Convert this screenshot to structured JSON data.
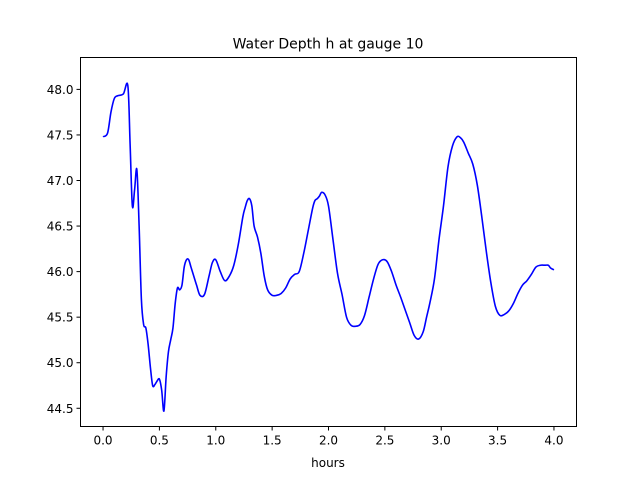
{
  "chart_data": {
    "type": "line",
    "title": "Water Depth h at gauge 10",
    "xlabel": "hours",
    "ylabel": "",
    "xlim": [
      -0.2,
      4.2
    ],
    "ylim": [
      44.3,
      48.35
    ],
    "xticks": [
      0.0,
      0.5,
      1.0,
      1.5,
      2.0,
      2.5,
      3.0,
      3.5,
      4.0
    ],
    "xtick_labels": [
      "0.0",
      "0.5",
      "1.0",
      "1.5",
      "2.0",
      "2.5",
      "3.0",
      "3.5",
      "4.0"
    ],
    "yticks": [
      44.5,
      45.0,
      45.5,
      46.0,
      46.5,
      47.0,
      47.5,
      48.0
    ],
    "ytick_labels": [
      "44.5",
      "45.0",
      "45.5",
      "46.0",
      "46.5",
      "47.0",
      "47.5",
      "48.0"
    ],
    "grid": false,
    "series": [
      {
        "color": "#0000ff",
        "x": [
          0.0,
          0.04,
          0.07,
          0.1,
          0.13,
          0.18,
          0.22,
          0.24,
          0.26,
          0.28,
          0.3,
          0.32,
          0.34,
          0.36,
          0.38,
          0.4,
          0.42,
          0.44,
          0.46,
          0.48,
          0.5,
          0.52,
          0.54,
          0.56,
          0.58,
          0.6,
          0.62,
          0.64,
          0.66,
          0.68,
          0.7,
          0.72,
          0.74,
          0.76,
          0.78,
          0.8,
          0.83,
          0.86,
          0.9,
          0.94,
          0.97,
          1.0,
          1.04,
          1.08,
          1.12,
          1.16,
          1.2,
          1.24,
          1.26,
          1.28,
          1.3,
          1.32,
          1.34,
          1.37,
          1.4,
          1.43,
          1.46,
          1.5,
          1.54,
          1.58,
          1.62,
          1.66,
          1.7,
          1.74,
          1.78,
          1.82,
          1.86,
          1.88,
          1.9,
          1.92,
          1.94,
          1.97,
          2.0,
          2.04,
          2.08,
          2.12,
          2.16,
          2.2,
          2.24,
          2.28,
          2.32,
          2.36,
          2.4,
          2.44,
          2.48,
          2.52,
          2.56,
          2.6,
          2.64,
          2.68,
          2.72,
          2.76,
          2.8,
          2.84,
          2.87,
          2.9,
          2.94,
          2.98,
          3.02,
          3.06,
          3.1,
          3.14,
          3.17,
          3.2,
          3.24,
          3.28,
          3.32,
          3.36,
          3.4,
          3.44,
          3.48,
          3.52,
          3.56,
          3.6,
          3.64,
          3.68,
          3.72,
          3.76,
          3.8,
          3.84,
          3.88,
          3.92,
          3.95,
          3.97,
          4.0
        ],
        "y": [
          47.48,
          47.52,
          47.75,
          47.9,
          47.93,
          47.95,
          48.04,
          47.4,
          46.72,
          46.9,
          47.12,
          46.5,
          45.7,
          45.42,
          45.38,
          45.2,
          44.95,
          44.75,
          44.76,
          44.8,
          44.82,
          44.7,
          44.47,
          44.85,
          45.12,
          45.25,
          45.38,
          45.65,
          45.82,
          45.8,
          45.85,
          46.05,
          46.13,
          46.13,
          46.05,
          45.97,
          45.85,
          45.74,
          45.75,
          45.95,
          46.1,
          46.13,
          46.0,
          45.9,
          45.95,
          46.07,
          46.3,
          46.6,
          46.7,
          46.78,
          46.8,
          46.72,
          46.5,
          46.38,
          46.2,
          45.95,
          45.8,
          45.74,
          45.74,
          45.76,
          45.82,
          45.92,
          45.97,
          46.0,
          46.2,
          46.45,
          46.7,
          46.78,
          46.8,
          46.83,
          46.87,
          46.84,
          46.72,
          46.35,
          45.98,
          45.75,
          45.5,
          45.41,
          45.4,
          45.42,
          45.52,
          45.72,
          45.92,
          46.08,
          46.13,
          46.11,
          46.0,
          45.85,
          45.72,
          45.58,
          45.44,
          45.3,
          45.26,
          45.34,
          45.5,
          45.66,
          45.92,
          46.35,
          46.72,
          47.15,
          47.38,
          47.48,
          47.47,
          47.42,
          47.3,
          47.18,
          46.95,
          46.6,
          46.22,
          45.88,
          45.62,
          45.52,
          45.53,
          45.57,
          45.65,
          45.76,
          45.85,
          45.9,
          45.97,
          46.05,
          46.07,
          46.07,
          46.07,
          46.04,
          46.02
        ]
      }
    ]
  }
}
